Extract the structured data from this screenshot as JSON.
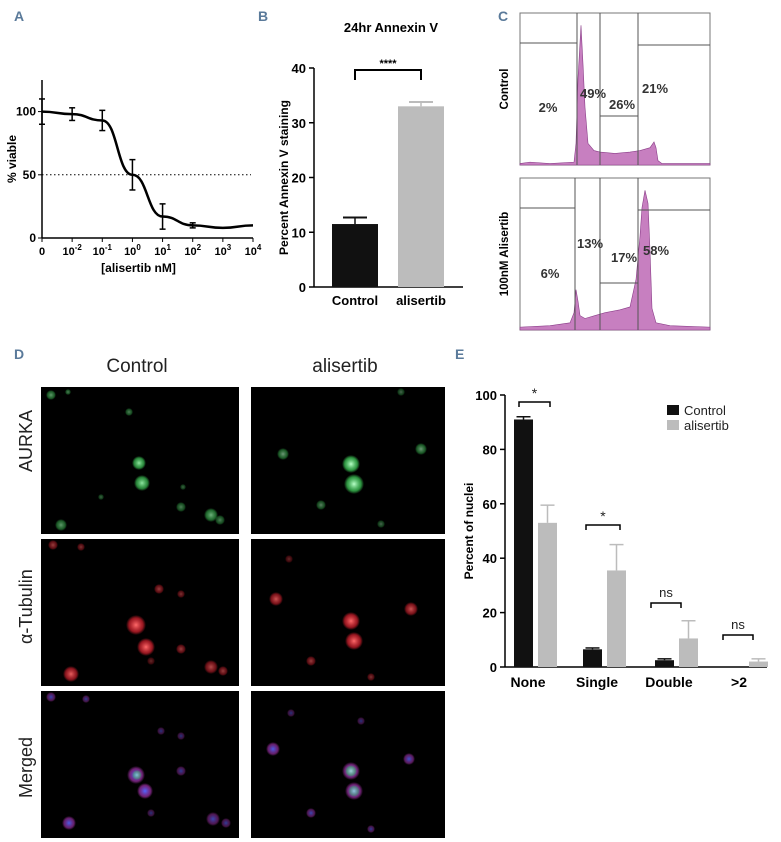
{
  "panels": {
    "A": "A",
    "B": "B",
    "C": "C",
    "D": "D",
    "E": "E"
  },
  "colors": {
    "black": "#111111",
    "grey": "#bcbcbc",
    "flow": "#c77fc0",
    "green": "#3fd25a",
    "red": "#d8202e",
    "blue": "#5066ff",
    "purple": "#a030a8"
  },
  "chart_data": [
    {
      "id": "A",
      "type": "line",
      "ylabel": "% viable",
      "xlabel": "[alisertib nM]",
      "x_ticks": [
        {
          "base": "0",
          "exp": ""
        },
        {
          "base": "10",
          "exp": "-2"
        },
        {
          "base": "10",
          "exp": "-1"
        },
        {
          "base": "10",
          "exp": "0"
        },
        {
          "base": "10",
          "exp": "1"
        },
        {
          "base": "10",
          "exp": "2"
        },
        {
          "base": "10",
          "exp": "3"
        },
        {
          "base": "10",
          "exp": "4"
        }
      ],
      "y_ticks": [
        "0",
        "50",
        "100"
      ],
      "ylim": [
        0,
        125
      ],
      "x": [
        0,
        0.01,
        0.1,
        1,
        10,
        100,
        1000,
        10000
      ],
      "y": [
        100,
        98,
        93,
        50,
        17,
        10,
        8,
        10
      ],
      "error": [
        10,
        5,
        8,
        12,
        10,
        2,
        0,
        0
      ],
      "reference_line": {
        "y": 50,
        "style": "dotted"
      }
    },
    {
      "id": "B",
      "type": "bar",
      "title": "24hr Annexin V",
      "ylabel": "Percent Annexin V staining",
      "categories": [
        "Control",
        "alisertib"
      ],
      "values": [
        11.5,
        33
      ],
      "error": [
        1.2,
        0.8
      ],
      "ylim": [
        0,
        40
      ],
      "y_ticks": [
        "0",
        "10",
        "20",
        "30",
        "40"
      ],
      "significance": "****"
    },
    {
      "id": "C",
      "type": "area",
      "rows": [
        {
          "label": "Control",
          "gates": [
            "2%",
            "49%",
            "26%",
            "21%"
          ]
        },
        {
          "label": "100nM Alisertib",
          "gates": [
            "6%",
            "13%",
            "17%",
            "58%"
          ]
        }
      ]
    },
    {
      "id": "E",
      "type": "bar",
      "ylabel": "Percent of nuclei",
      "categories": [
        "None",
        "Single",
        "Double",
        ">2"
      ],
      "series": [
        {
          "name": "Control",
          "values": [
            91,
            6.5,
            2.5,
            0
          ],
          "error": [
            1,
            0.5,
            0.5,
            0
          ]
        },
        {
          "name": "alisertib",
          "values": [
            53,
            35.5,
            10.5,
            2
          ],
          "error": [
            6.5,
            9.5,
            6.5,
            1
          ]
        }
      ],
      "ylim": [
        0,
        100
      ],
      "y_ticks": [
        "0",
        "20",
        "40",
        "60",
        "80",
        "100"
      ],
      "annotations": [
        "*",
        "*",
        "ns",
        "ns"
      ]
    }
  ],
  "microscopy": {
    "columns": [
      "Control",
      "alisertib"
    ],
    "rows": [
      "AURKA",
      "α-Tubulin",
      "Merged"
    ]
  }
}
